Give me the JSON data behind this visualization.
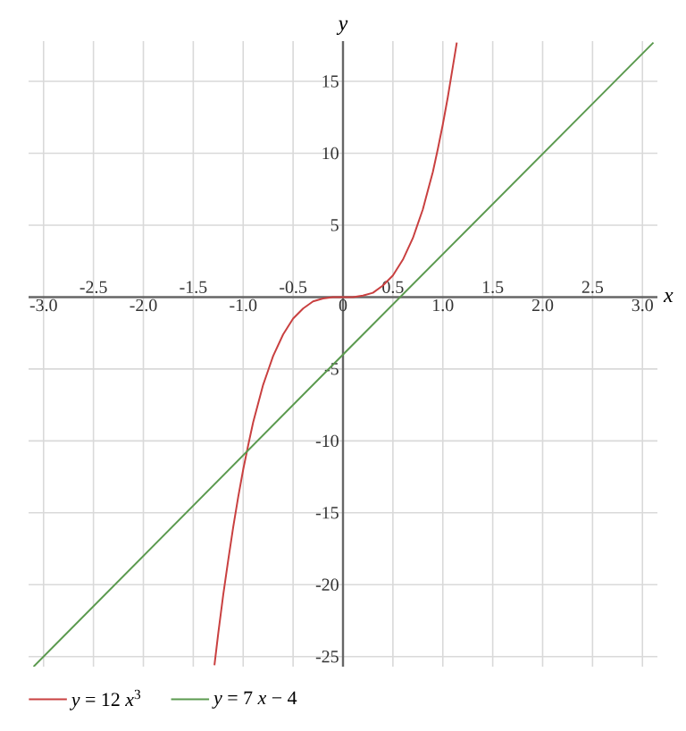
{
  "chart_data": {
    "type": "line",
    "xlabel": "x",
    "ylabel": "y",
    "xlim": [
      -3.15,
      3.15
    ],
    "ylim": [
      -25.7,
      17.8
    ],
    "xticks": [
      {
        "value": -3,
        "label": "-3.0"
      },
      {
        "value": -2,
        "label": "-2.0"
      },
      {
        "value": -1,
        "label": "-1.0"
      },
      0,
      {
        "value": 1,
        "label": "1.0"
      },
      {
        "value": 2,
        "label": "2.0"
      },
      {
        "value": 3,
        "label": "3.0"
      }
    ],
    "x2lim": [
      -3.15,
      3.15
    ],
    "x2ticks": [
      -2.5,
      -1.5,
      -0.5,
      0.5,
      1.5,
      2.5
    ],
    "yticks": [
      -25,
      -20,
      -15,
      -10,
      -5,
      5,
      10,
      15
    ],
    "grid": true,
    "legend": "bottom",
    "marker": "none",
    "series": [
      {
        "name": "*y* = 12 *x*$^{3}$",
        "color": "#c94040",
        "x": [
          -1.288,
          -1.25,
          -1.2,
          -1.15,
          -1.1,
          -1.05,
          -1.0,
          -0.95,
          -0.9,
          -0.85,
          -0.8,
          -0.75,
          -0.7,
          -0.6,
          -0.5,
          -0.4,
          -0.3,
          -0.2,
          -0.1,
          0,
          0.1,
          0.2,
          0.3,
          0.4,
          0.5,
          0.6,
          0.7,
          0.75,
          0.8,
          0.85,
          0.9,
          0.95,
          1.0,
          1.05,
          1.1,
          1.14
        ],
        "values": [
          -25.6,
          -23.4,
          -20.7,
          -18.3,
          -16,
          -13.9,
          -12,
          -10.3,
          -8.7,
          -7.4,
          -6.1,
          -5.1,
          -4.1,
          -2.6,
          -1.5,
          -0.8,
          -0.3,
          -0.1,
          0,
          0,
          0,
          0.1,
          0.3,
          0.8,
          1.5,
          2.6,
          4.1,
          5.1,
          6.1,
          7.4,
          8.7,
          10.3,
          12,
          13.9,
          16,
          17.7
        ]
      },
      {
        "name": "*y* = 7 *x* − 4",
        "color": "#5b9a4f",
        "x": [
          -3.1,
          0,
          3.11
        ],
        "values": [
          -25.7,
          -4,
          17.7
        ]
      }
    ]
  }
}
